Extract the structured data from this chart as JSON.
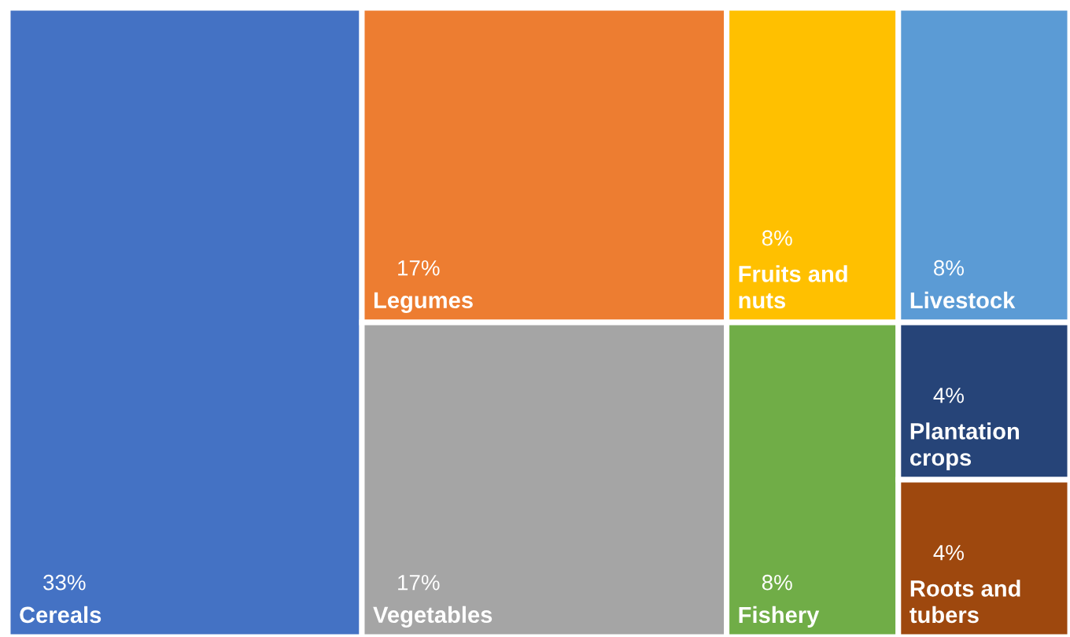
{
  "chart_data": {
    "type": "other",
    "categories": [
      "Cereals",
      "Legumes",
      "Vegetables",
      "Fruits and nuts",
      "Fishery",
      "Livestock",
      "Plantation crops",
      "Roots and tubers"
    ],
    "values": [
      33,
      17,
      17,
      8,
      8,
      8,
      4,
      4
    ],
    "value_labels": [
      "33%",
      "17%",
      "17%",
      "8%",
      "8%",
      "8%",
      "4%",
      "4%"
    ],
    "colors": [
      "#4472c4",
      "#ed7d31",
      "#a5a5a5",
      "#ffc000",
      "#70ad47",
      "#5b9bd5",
      "#264478",
      "#9e480e"
    ]
  }
}
